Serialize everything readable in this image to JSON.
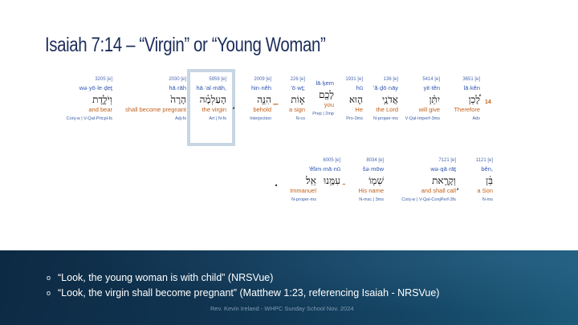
{
  "slide": {
    "title": "Isaiah 7:14 – “Virgin” or “Young Woman”",
    "verse_number": "14",
    "row1": [
      {
        "num": "3651 [e]",
        "translit": "lā·kên",
        "heb": "לָ֠כֵן",
        "gloss": "Therefore",
        "parse": "Adv"
      },
      {
        "num": "5414 [e]",
        "translit": "yit·tên",
        "heb": "יִתֵּ֨ן",
        "gloss": "will give",
        "parse": "V-Qal-Imperf-3ms"
      },
      {
        "num": "136 [e]",
        "translit": "’ă·ḏō·nāy",
        "heb": "אֲדֹנָ֥י",
        "gloss": "the Lord",
        "parse": "N-proper-ms"
      },
      {
        "num": "1931 [e]",
        "translit": "hū",
        "heb": "ה֛וּא",
        "gloss": "He",
        "parse": "Pro-3ms"
      },
      {
        "num": "",
        "translit": "lā·ḵem",
        "heb": "לָכֶ֖ם",
        "gloss": "you",
        "parse": "Prep | 2mp"
      },
      {
        "num": "226 [e]",
        "translit": "’ō·wṯ;",
        "heb": "א֑וֹת",
        "gloss": "a sign",
        "parse": "N-cs"
      },
      {
        "num": "2009 [e]",
        "translit": "hin·nêh",
        "heb": "הִנֵּ֣ה",
        "gloss": "behold",
        "parse": "Interjection"
      },
      {
        "num": "5959 [e]",
        "translit": "hā·‘al·māh,",
        "heb": "הָעַלְמָ֗ה",
        "gloss": "the virgin",
        "parse": "Art | N-fs"
      },
      {
        "num": "2030 [e]",
        "translit": "hā·rāh",
        "heb": "הָרָה֙",
        "gloss": "shall become pregnant",
        "parse": "Adj-fs"
      },
      {
        "num": "3205 [e]",
        "translit": "wə·yō·le·ḏeṯ",
        "heb": "וְיֹלֶ֣דֶת",
        "gloss": "and bear",
        "parse": "Conj-w | V-Qal-Prtcpl-fs"
      }
    ],
    "row2": [
      {
        "num": "1121 [e]",
        "translit": "bên,",
        "heb": "בֵּ֔ן",
        "gloss": "a Son",
        "parse": "N-ms"
      },
      {
        "num": "7121 [e]",
        "translit": "wə·qā·rāṯ",
        "heb": "וְקָרָ֥את",
        "gloss": "and shall call",
        "parse": "Conj-w | V-Qal-ConjPerf-3fs"
      },
      {
        "num": "8034 [e]",
        "translit": "šə·mōw",
        "heb": "שְׁמ֖וֹ",
        "gloss": "His name",
        "parse": "N-msc | 3ms"
      },
      {
        "num": "6005 [e]",
        "translit": "’im·mā·nū",
        "heb": "עִמָּ֥נוּ",
        "gloss": "",
        "parse": ""
      },
      {
        "num": "",
        "translit": "’êl.",
        "heb": "אֵֽל׃",
        "gloss": "Immanuel",
        "parse": "N-proper-ms"
      }
    ],
    "punctuation": {
      "comma": "،",
      "maqaf": "־",
      "dash": "–",
      "dot": "·"
    },
    "bullets": [
      "“Look, the young woman is with child” (NRSVue)",
      "“Look, the virgin shall become pregnant” (Matthew 1:23, referencing Isaiah - NRSVue)"
    ],
    "bullet_mark": "o",
    "footer_credit": "Rev. Kevin Ireland - WHPC Sunday School Nov. 2024",
    "colors": {
      "title": "#1c2d5a",
      "gloss": "#c2601a",
      "translit": "#2f55b0",
      "footer_band": "#103552",
      "highlight": "#c8d6e3"
    }
  }
}
